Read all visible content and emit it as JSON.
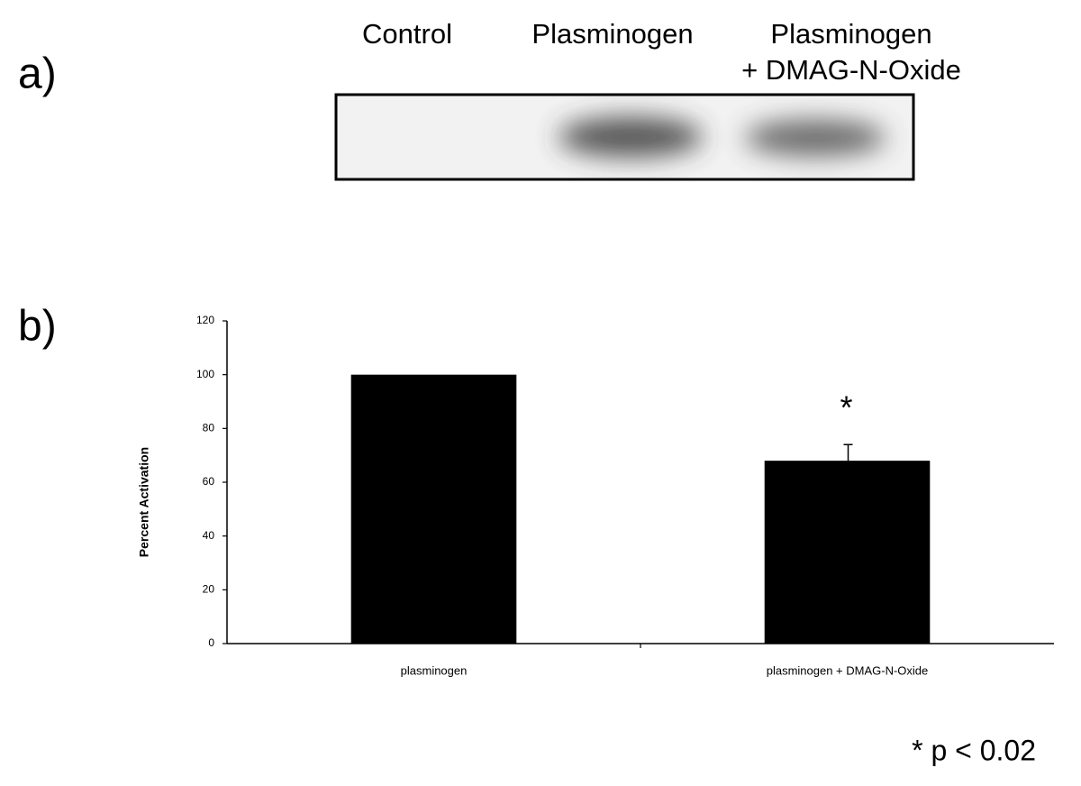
{
  "panel_labels": [
    "a)",
    "b)"
  ],
  "blot": {
    "lanes": [
      [
        "Control"
      ],
      [
        "Plasminogen"
      ],
      [
        "Plasminogen",
        "+ DMAG-N-Oxide"
      ]
    ]
  },
  "chart_data": {
    "type": "bar",
    "ylabel": "Percent Activation",
    "categories": [
      "plasminogen",
      "plasminogen + DMAG-N-Oxide"
    ],
    "values": [
      100,
      68
    ],
    "errors": [
      0,
      6
    ],
    "color": "#000000",
    "annotation": "*",
    "ylim": [
      0,
      120
    ],
    "yticks": [
      0,
      20,
      40,
      60,
      80,
      100,
      120
    ]
  },
  "footnote": "* p < 0.02"
}
